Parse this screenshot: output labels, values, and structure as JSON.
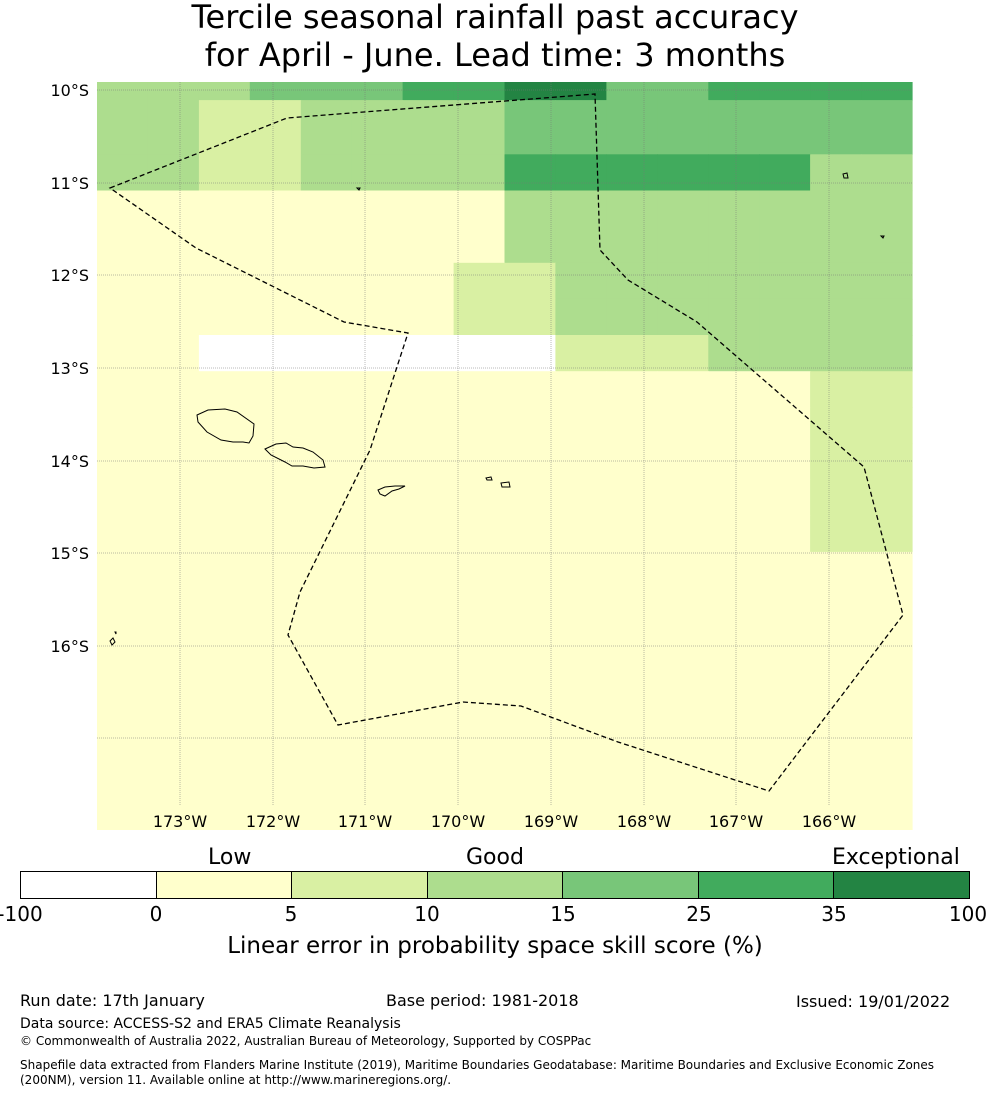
{
  "title": {
    "line1": "Tercile seasonal rainfall past accuracy",
    "line2": "for April - June. Lead time: 3 months"
  },
  "map": {
    "lat_labels": [
      "10°S",
      "11°S",
      "12°S",
      "13°S",
      "14°S",
      "15°S",
      "16°S"
    ],
    "lon_labels": [
      "173°W",
      "172°W",
      "171°W",
      "170°W",
      "169°W",
      "168°W",
      "167°W",
      "166°W"
    ],
    "grid_values": [
      [
        3,
        3,
        3,
        4,
        4,
        4,
        5,
        5,
        6,
        6,
        4,
        4,
        5,
        5,
        5,
        5
      ],
      [
        3,
        3,
        2,
        2,
        3,
        3,
        3,
        3,
        4,
        4,
        4,
        4,
        4,
        4,
        4,
        4
      ],
      [
        3,
        3,
        2,
        2,
        3,
        3,
        3,
        3,
        5,
        5,
        5,
        5,
        5,
        5,
        3,
        3
      ],
      [
        1,
        1,
        1,
        1,
        1,
        1,
        1,
        1,
        3,
        3,
        3,
        3,
        3,
        3,
        3,
        3
      ],
      [
        1,
        1,
        1,
        1,
        1,
        1,
        1,
        2,
        2,
        3,
        3,
        3,
        3,
        3,
        3,
        3
      ],
      [
        1,
        1,
        1,
        1,
        1,
        1,
        1,
        2,
        2,
        3,
        3,
        3,
        3,
        3,
        3,
        3
      ],
      [
        1,
        1,
        0,
        0,
        0,
        0,
        0,
        0,
        0,
        2,
        2,
        2,
        3,
        3,
        3,
        3
      ],
      [
        1,
        1,
        1,
        1,
        1,
        1,
        1,
        1,
        1,
        1,
        1,
        1,
        1,
        1,
        2,
        2
      ],
      [
        1,
        1,
        1,
        1,
        1,
        1,
        1,
        1,
        1,
        1,
        1,
        1,
        1,
        1,
        2,
        2
      ],
      [
        1,
        1,
        1,
        1,
        1,
        1,
        1,
        1,
        1,
        1,
        1,
        1,
        1,
        1,
        2,
        2
      ],
      [
        1,
        1,
        1,
        1,
        1,
        1,
        1,
        1,
        1,
        1,
        1,
        1,
        1,
        1,
        2,
        2
      ],
      [
        1,
        1,
        1,
        1,
        1,
        1,
        1,
        1,
        1,
        1,
        1,
        1,
        1,
        1,
        2,
        2
      ],
      [
        1,
        1,
        1,
        1,
        1,
        1,
        1,
        1,
        1,
        1,
        1,
        1,
        1,
        1,
        1,
        1
      ],
      [
        1,
        1,
        1,
        1,
        1,
        1,
        1,
        1,
        1,
        1,
        1,
        1,
        1,
        1,
        1,
        1
      ],
      [
        1,
        1,
        1,
        1,
        1,
        1,
        1,
        1,
        1,
        1,
        1,
        1,
        1,
        1,
        1,
        1
      ],
      [
        1,
        1,
        1,
        1,
        1,
        1,
        1,
        1,
        1,
        1,
        1,
        1,
        1,
        1,
        1,
        1
      ],
      [
        1,
        1,
        1,
        1,
        1,
        1,
        1,
        1,
        1,
        1,
        1,
        1,
        1,
        1,
        1,
        1
      ],
      [
        1,
        1,
        1,
        1,
        1,
        1,
        1,
        1,
        1,
        1,
        1,
        1,
        1,
        1,
        1,
        1
      ],
      [
        1,
        1,
        1,
        1,
        1,
        1,
        1,
        1,
        1,
        1,
        1,
        1,
        1,
        1,
        1,
        1
      ],
      [
        1,
        1,
        1,
        1,
        1,
        1,
        1,
        1,
        1,
        1,
        1,
        1,
        1,
        1,
        1,
        1
      ]
    ]
  },
  "colorbar": {
    "group_labels": [
      "Low",
      "Good",
      "Exceptional"
    ],
    "ticks": [
      "-100",
      "0",
      "5",
      "10",
      "15",
      "25",
      "35",
      "100"
    ],
    "colors": [
      "#ffffff",
      "#ffffcc",
      "#d9f0a3",
      "#addd8e",
      "#78c679",
      "#41ab5d",
      "#238443"
    ],
    "title": "Linear error in probability space skill score (%)"
  },
  "footer": {
    "run_date": "Run date: 17th January",
    "base_period": "Base period: 1981-2018",
    "issued": "Issued: 19/01/2022",
    "data_source": "Data source: ACCESS-S2 and ERA5 Climate Reanalysis",
    "copyright": "© Commonwealth of Australia 2022, Australian Bureau of Meteorology, Supported by COSPPac",
    "shapefile_line1": "Shapefile data extracted from Flanders Marine Institute (2019), Maritime Boundaries Geodatabase: Maritime Boundaries and Exclusive Economic Zones",
    "shapefile_line2": "(200NM), version 11. Available online at http://www.marineregions.org/."
  }
}
